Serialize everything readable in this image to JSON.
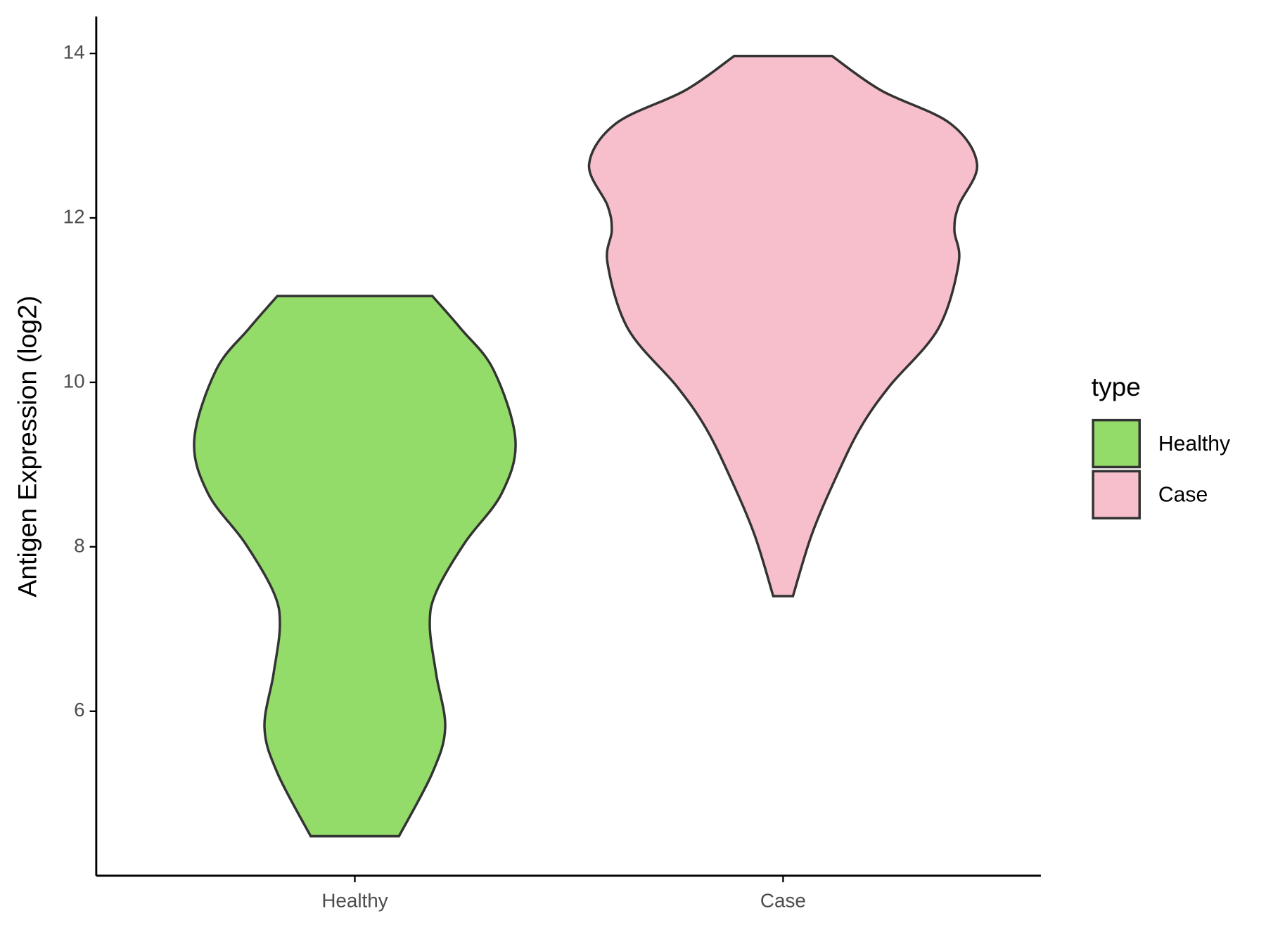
{
  "chart_data": {
    "type": "violin",
    "ylabel": "Antigen Expression (log2)",
    "categories": [
      "Healthy",
      "Case"
    ],
    "ylim": [
      4.0,
      14.45
    ],
    "yticks": [
      6,
      8,
      10,
      12,
      14
    ],
    "legend_title": "type",
    "legend": "right",
    "series": [
      {
        "name": "Healthy",
        "color": "#94dc6a",
        "y": [
          11.05,
          10.65,
          10.15,
          9.3,
          8.65,
          8.05,
          7.45,
          7.05,
          6.45,
          5.8,
          5.25,
          4.48
        ],
        "half_width": [
          0.181,
          0.248,
          0.324,
          0.375,
          0.343,
          0.257,
          0.19,
          0.175,
          0.19,
          0.211,
          0.181,
          0.103
        ]
      },
      {
        "name": "Case",
        "color": "#f7bfcb",
        "y": [
          13.97,
          13.55,
          13.15,
          12.65,
          12.15,
          11.85,
          11.45,
          10.65,
          9.95,
          9.45,
          8.85,
          8.15,
          7.4
        ],
        "half_width": [
          0.114,
          0.229,
          0.39,
          0.453,
          0.41,
          0.4,
          0.41,
          0.362,
          0.248,
          0.181,
          0.124,
          0.067,
          0.023
        ]
      }
    ]
  }
}
